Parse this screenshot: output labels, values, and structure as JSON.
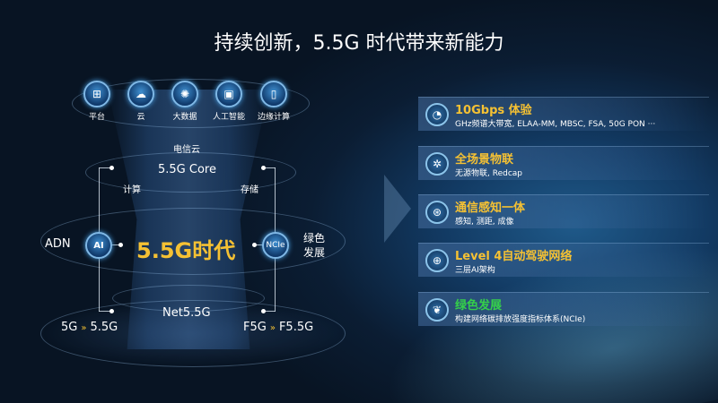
{
  "title": "持续创新，5.5G 时代带来新能力",
  "top_icons": [
    {
      "label": "平台",
      "icon": "platform-icon"
    },
    {
      "label": "云",
      "icon": "cloud-icon"
    },
    {
      "label": "大数据",
      "icon": "big-data-icon"
    },
    {
      "label": "人工智能",
      "icon": "ai-chip-icon"
    },
    {
      "label": "边缘计算",
      "icon": "edge-computing-icon"
    }
  ],
  "diagram": {
    "telecom_cloud": "电信云",
    "core": "5.5G Core",
    "compute": "计算",
    "storage": "存储",
    "era": "5.5G时代",
    "adn": "ADN",
    "ai_badge": "AI",
    "ncie_badge": "NCIe",
    "green": "绿色",
    "development": "发展",
    "net": "Net5.5G",
    "left_from": "5G",
    "left_to": "5.5G",
    "right_from": "F5G",
    "right_to": "F5.5G"
  },
  "features": [
    {
      "title": "10Gbps 体验",
      "desc": "GHz频谱大带宽, ELAA-MM, MBSC, FSA, 50G PON ···",
      "icon": "speedometer-icon",
      "color": "#f5c133"
    },
    {
      "title": "全场景物联",
      "desc": "无源物联, Redcap",
      "icon": "iot-network-icon",
      "color": "#f5c133"
    },
    {
      "title": "通信感知一体",
      "desc": "感知, 测距, 成像",
      "icon": "sensing-icon",
      "color": "#f5c133"
    },
    {
      "title": "Level 4自动驾驶网络",
      "desc": "三层AI架构",
      "icon": "globe-network-icon",
      "color": "#f5c133"
    },
    {
      "title": "绿色发展",
      "desc": "构建网络碳排放强度指标体系(NCIe)",
      "icon": "leaf-icon",
      "color": "#35d04a"
    }
  ]
}
